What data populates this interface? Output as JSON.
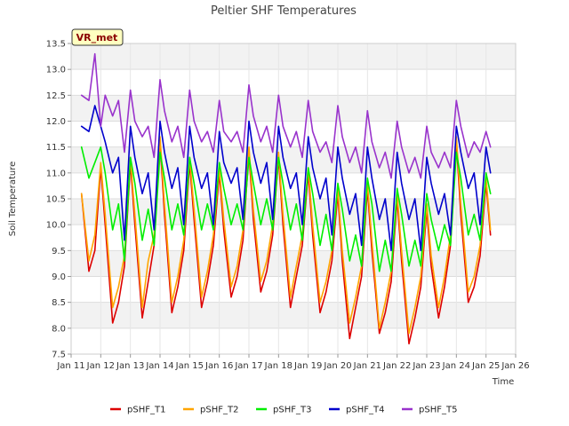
{
  "chart_data": {
    "type": "line",
    "title": "Peltier SHF Temperatures",
    "xlabel": "Time",
    "ylabel": "Soil Temperature",
    "badge": "VR_met",
    "xlim": [
      11,
      26
    ],
    "ylim": [
      7.5,
      13.5
    ],
    "xticks": [
      11,
      12,
      13,
      14,
      15,
      16,
      17,
      18,
      19,
      20,
      21,
      22,
      23,
      24,
      25,
      26
    ],
    "xtick_labels": [
      "Jan 11",
      "Jan 12",
      "Jan 13",
      "Jan 14",
      "Jan 15",
      "Jan 16",
      "Jan 17",
      "Jan 18",
      "Jan 19",
      "Jan 20",
      "Jan 21",
      "Jan 22",
      "Jan 23",
      "Jan 24",
      "Jan 25",
      "Jan 26"
    ],
    "yticks": [
      7.5,
      8.0,
      8.5,
      9.0,
      9.5,
      10.0,
      10.5,
      11.0,
      11.5,
      12.0,
      12.5,
      13.0,
      13.5
    ],
    "ytick_labels": [
      "7.5",
      "8.0",
      "8.5",
      "9.0",
      "9.5",
      "10.0",
      "10.5",
      "11.0",
      "11.5",
      "12.0",
      "12.5",
      "13.0",
      "13.5"
    ],
    "grid": true,
    "legend_position": "bottom-center",
    "series": [
      {
        "name": "pSHF_T1",
        "color": "#dd0000",
        "x": [
          11.35,
          11.6,
          11.8,
          12.0,
          12.15,
          12.4,
          12.6,
          12.8,
          13.0,
          13.15,
          13.4,
          13.6,
          13.8,
          14.0,
          14.15,
          14.4,
          14.6,
          14.8,
          15.0,
          15.15,
          15.4,
          15.6,
          15.8,
          16.0,
          16.15,
          16.4,
          16.6,
          16.8,
          17.0,
          17.15,
          17.4,
          17.6,
          17.8,
          18.0,
          18.15,
          18.4,
          18.6,
          18.8,
          19.0,
          19.15,
          19.4,
          19.6,
          19.8,
          20.0,
          20.15,
          20.4,
          20.6,
          20.8,
          21.0,
          21.15,
          21.4,
          21.6,
          21.8,
          22.0,
          22.15,
          22.4,
          22.6,
          22.8,
          23.0,
          23.15,
          23.4,
          23.6,
          23.8,
          24.0,
          24.15,
          24.4,
          24.6,
          24.8,
          25.0,
          25.15
        ],
        "y": [
          10.6,
          9.1,
          9.5,
          11.1,
          10.0,
          8.1,
          8.5,
          9.2,
          11.2,
          10.0,
          8.2,
          8.9,
          9.6,
          11.6,
          10.2,
          8.3,
          8.8,
          9.5,
          11.2,
          10.1,
          8.4,
          8.9,
          9.6,
          11.0,
          9.9,
          8.6,
          9.0,
          9.7,
          11.4,
          10.1,
          8.7,
          9.1,
          9.8,
          11.3,
          10.0,
          8.4,
          9.0,
          9.6,
          11.0,
          9.8,
          8.3,
          8.7,
          9.3,
          10.6,
          9.3,
          7.8,
          8.4,
          9.0,
          10.7,
          9.5,
          7.9,
          8.3,
          8.9,
          10.5,
          9.3,
          7.7,
          8.2,
          8.8,
          10.3,
          9.2,
          8.2,
          8.8,
          9.6,
          11.6,
          10.2,
          8.5,
          8.8,
          9.4,
          10.8,
          9.8
        ]
      },
      {
        "name": "pSHF_T2",
        "color": "#ffa500",
        "x": [
          11.35,
          11.6,
          11.8,
          12.0,
          12.15,
          12.4,
          12.6,
          12.8,
          13.0,
          13.15,
          13.4,
          13.6,
          13.8,
          14.0,
          14.15,
          14.4,
          14.6,
          14.8,
          15.0,
          15.15,
          15.4,
          15.6,
          15.8,
          16.0,
          16.15,
          16.4,
          16.6,
          16.8,
          17.0,
          17.15,
          17.4,
          17.6,
          17.8,
          18.0,
          18.15,
          18.4,
          18.6,
          18.8,
          19.0,
          19.15,
          19.4,
          19.6,
          19.8,
          20.0,
          20.15,
          20.4,
          20.6,
          20.8,
          21.0,
          21.15,
          21.4,
          21.6,
          21.8,
          22.0,
          22.15,
          22.4,
          22.6,
          22.8,
          23.0,
          23.15,
          23.4,
          23.6,
          23.8,
          24.0,
          24.15,
          24.4,
          24.6,
          24.8,
          25.0,
          25.15
        ],
        "y": [
          10.6,
          9.3,
          9.8,
          11.2,
          10.2,
          8.4,
          8.8,
          9.4,
          11.3,
          10.2,
          8.4,
          9.3,
          9.8,
          11.7,
          10.4,
          8.5,
          9.0,
          9.7,
          11.3,
          10.3,
          8.6,
          9.1,
          9.8,
          11.1,
          10.1,
          8.8,
          9.2,
          9.9,
          11.5,
          10.3,
          8.9,
          9.3,
          10.0,
          11.4,
          10.2,
          8.6,
          9.2,
          9.8,
          11.1,
          10.0,
          8.5,
          8.9,
          9.5,
          10.7,
          9.5,
          8.1,
          8.6,
          9.2,
          10.8,
          9.7,
          8.0,
          8.5,
          9.1,
          10.6,
          9.5,
          7.9,
          8.4,
          9.0,
          10.4,
          9.4,
          8.4,
          9.0,
          9.8,
          11.7,
          10.4,
          8.7,
          9.0,
          9.6,
          10.9,
          9.9
        ]
      },
      {
        "name": "pSHF_T3",
        "color": "#00ee00",
        "x": [
          11.35,
          11.6,
          11.8,
          12.0,
          12.15,
          12.4,
          12.6,
          12.8,
          13.0,
          13.15,
          13.4,
          13.6,
          13.8,
          14.0,
          14.15,
          14.4,
          14.6,
          14.8,
          15.0,
          15.15,
          15.4,
          15.6,
          15.8,
          16.0,
          16.15,
          16.4,
          16.6,
          16.8,
          17.0,
          17.15,
          17.4,
          17.6,
          17.8,
          18.0,
          18.15,
          18.4,
          18.6,
          18.8,
          19.0,
          19.15,
          19.4,
          19.6,
          19.8,
          20.0,
          20.15,
          20.4,
          20.6,
          20.8,
          21.0,
          21.15,
          21.4,
          21.6,
          21.8,
          22.0,
          22.15,
          22.4,
          22.6,
          22.8,
          23.0,
          23.15,
          23.4,
          23.6,
          23.8,
          24.0,
          24.15,
          24.4,
          24.6,
          24.8,
          25.0,
          25.15
        ],
        "y": [
          11.5,
          10.9,
          11.2,
          11.5,
          11.0,
          9.9,
          10.4,
          9.3,
          11.3,
          10.8,
          9.7,
          10.3,
          9.6,
          11.4,
          10.9,
          9.9,
          10.4,
          9.8,
          11.3,
          10.8,
          9.9,
          10.4,
          9.9,
          11.2,
          10.7,
          10.0,
          10.4,
          9.9,
          11.3,
          10.8,
          10.0,
          10.5,
          9.9,
          11.3,
          10.8,
          9.9,
          10.4,
          9.7,
          11.1,
          10.6,
          9.6,
          10.2,
          9.5,
          10.8,
          10.3,
          9.3,
          9.8,
          9.2,
          10.9,
          10.4,
          9.1,
          9.7,
          9.1,
          10.7,
          10.2,
          9.2,
          9.7,
          9.2,
          10.6,
          10.1,
          9.5,
          10.0,
          9.6,
          11.4,
          10.9,
          9.8,
          10.2,
          9.7,
          11.0,
          10.6
        ]
      },
      {
        "name": "pSHF_T4",
        "color": "#0000cc",
        "x": [
          11.35,
          11.6,
          11.8,
          12.0,
          12.15,
          12.4,
          12.6,
          12.8,
          13.0,
          13.15,
          13.4,
          13.6,
          13.8,
          14.0,
          14.15,
          14.4,
          14.6,
          14.8,
          15.0,
          15.15,
          15.4,
          15.6,
          15.8,
          16.0,
          16.15,
          16.4,
          16.6,
          16.8,
          17.0,
          17.15,
          17.4,
          17.6,
          17.8,
          18.0,
          18.15,
          18.4,
          18.6,
          18.8,
          19.0,
          19.15,
          19.4,
          19.6,
          19.8,
          20.0,
          20.15,
          20.4,
          20.6,
          20.8,
          21.0,
          21.15,
          21.4,
          21.6,
          21.8,
          22.0,
          22.15,
          22.4,
          22.6,
          22.8,
          23.0,
          23.15,
          23.4,
          23.6,
          23.8,
          24.0,
          24.15,
          24.4,
          24.6,
          24.8,
          25.0,
          25.15
        ],
        "y": [
          11.9,
          11.8,
          12.3,
          11.9,
          11.6,
          11.0,
          11.3,
          9.7,
          11.9,
          11.3,
          10.6,
          11.0,
          9.9,
          12.0,
          11.4,
          10.7,
          11.1,
          10.0,
          11.9,
          11.3,
          10.7,
          11.0,
          10.0,
          11.8,
          11.2,
          10.8,
          11.1,
          10.1,
          12.0,
          11.4,
          10.8,
          11.2,
          10.1,
          11.9,
          11.3,
          10.7,
          11.0,
          10.0,
          11.7,
          11.1,
          10.5,
          10.9,
          9.8,
          11.5,
          10.9,
          10.2,
          10.6,
          9.6,
          11.5,
          10.9,
          10.1,
          10.5,
          9.5,
          11.4,
          10.8,
          10.1,
          10.5,
          9.5,
          11.3,
          10.8,
          10.2,
          10.6,
          9.8,
          11.9,
          11.4,
          10.7,
          11.0,
          10.0,
          11.5,
          11.0
        ]
      },
      {
        "name": "pSHF_T5",
        "color": "#9933cc",
        "x": [
          11.35,
          11.6,
          11.8,
          12.0,
          12.15,
          12.4,
          12.6,
          12.8,
          13.0,
          13.15,
          13.4,
          13.6,
          13.8,
          14.0,
          14.15,
          14.4,
          14.6,
          14.8,
          15.0,
          15.15,
          15.4,
          15.6,
          15.8,
          16.0,
          16.15,
          16.4,
          16.6,
          16.8,
          17.0,
          17.15,
          17.4,
          17.6,
          17.8,
          18.0,
          18.15,
          18.4,
          18.6,
          18.8,
          19.0,
          19.15,
          19.4,
          19.6,
          19.8,
          20.0,
          20.15,
          20.4,
          20.6,
          20.8,
          21.0,
          21.15,
          21.4,
          21.6,
          21.8,
          22.0,
          22.15,
          22.4,
          22.6,
          22.8,
          23.0,
          23.15,
          23.4,
          23.6,
          23.8,
          24.0,
          24.15,
          24.4,
          24.6,
          24.8,
          25.0,
          25.15
        ],
        "y": [
          12.5,
          12.4,
          13.3,
          11.9,
          12.5,
          12.1,
          12.4,
          11.4,
          12.6,
          12.0,
          11.7,
          11.9,
          11.3,
          12.8,
          12.2,
          11.6,
          11.9,
          11.3,
          12.6,
          12.0,
          11.6,
          11.8,
          11.4,
          12.4,
          11.8,
          11.6,
          11.8,
          11.4,
          12.7,
          12.1,
          11.6,
          11.9,
          11.4,
          12.5,
          11.9,
          11.5,
          11.8,
          11.3,
          12.4,
          11.8,
          11.4,
          11.6,
          11.2,
          12.3,
          11.7,
          11.2,
          11.5,
          11.0,
          12.2,
          11.6,
          11.1,
          11.4,
          10.9,
          12.0,
          11.5,
          11.0,
          11.3,
          10.9,
          11.9,
          11.4,
          11.1,
          11.4,
          11.1,
          12.4,
          11.9,
          11.3,
          11.6,
          11.4,
          11.8,
          11.5
        ]
      }
    ]
  }
}
